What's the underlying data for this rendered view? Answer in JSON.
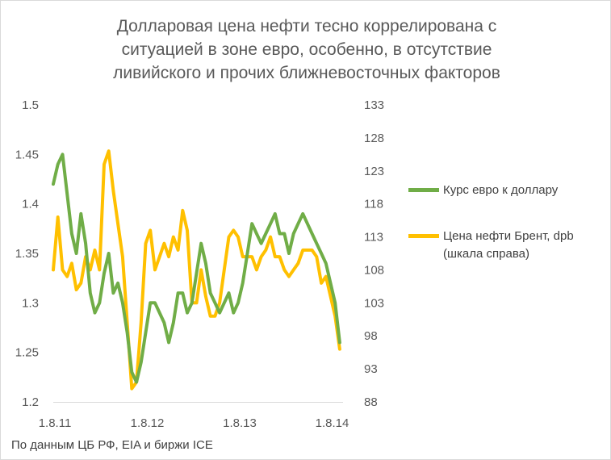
{
  "chart_data": {
    "type": "line",
    "title": [
      "Долларовая цена нефти тесно коррелирована с",
      "ситуацией в зоне евро, особенно, в отсутствие",
      "ливийского и прочих ближневосточных факторов"
    ],
    "x_tick_labels": [
      "1.8.11",
      "1.8.12",
      "1.8.13",
      "1.8.14"
    ],
    "ylim_left": [
      1.2,
      1.5
    ],
    "yticks_left": [
      "1.5",
      "1.45",
      "1.4",
      "1.35",
      "1.3",
      "1.25",
      "1.2"
    ],
    "ylim_right": [
      88,
      133
    ],
    "yticks_right": [
      "133",
      "128",
      "123",
      "118",
      "113",
      "108",
      "103",
      "98",
      "93",
      "88"
    ],
    "series": [
      {
        "name": "Курс евро к доллару",
        "axis": "left",
        "color": "#70ad47",
        "x": [
          0.0,
          0.05,
          0.1,
          0.15,
          0.2,
          0.25,
          0.3,
          0.35,
          0.4,
          0.45,
          0.5,
          0.55,
          0.6,
          0.65,
          0.7,
          0.75,
          0.8,
          0.85,
          0.9,
          0.95,
          1.0,
          1.05,
          1.1,
          1.15,
          1.2,
          1.25,
          1.3,
          1.35,
          1.4,
          1.45,
          1.5,
          1.55,
          1.6,
          1.65,
          1.7,
          1.75,
          1.8,
          1.85,
          1.9,
          1.95,
          2.0,
          2.05,
          2.1,
          2.15,
          2.2,
          2.25,
          2.3,
          2.35,
          2.4,
          2.45,
          2.5,
          2.55,
          2.6,
          2.65,
          2.7,
          2.75,
          2.8,
          2.85,
          2.9,
          2.95,
          3.0,
          3.05,
          3.1
        ],
        "values": [
          1.42,
          1.44,
          1.45,
          1.41,
          1.37,
          1.35,
          1.39,
          1.36,
          1.31,
          1.29,
          1.3,
          1.33,
          1.35,
          1.31,
          1.32,
          1.3,
          1.27,
          1.23,
          1.22,
          1.24,
          1.27,
          1.3,
          1.3,
          1.29,
          1.28,
          1.26,
          1.28,
          1.31,
          1.31,
          1.29,
          1.3,
          1.33,
          1.36,
          1.34,
          1.31,
          1.3,
          1.29,
          1.3,
          1.31,
          1.29,
          1.3,
          1.32,
          1.35,
          1.38,
          1.37,
          1.36,
          1.37,
          1.38,
          1.39,
          1.37,
          1.37,
          1.35,
          1.37,
          1.38,
          1.39,
          1.38,
          1.37,
          1.36,
          1.35,
          1.34,
          1.32,
          1.3,
          1.26
        ]
      },
      {
        "name": "Цена нефти  Брент, dpb (шкала справа)",
        "axis": "right",
        "color": "#ffc000",
        "x": [
          0.0,
          0.05,
          0.1,
          0.15,
          0.2,
          0.25,
          0.3,
          0.35,
          0.4,
          0.45,
          0.5,
          0.55,
          0.6,
          0.65,
          0.7,
          0.75,
          0.8,
          0.85,
          0.9,
          0.95,
          1.0,
          1.05,
          1.1,
          1.15,
          1.2,
          1.25,
          1.3,
          1.35,
          1.4,
          1.45,
          1.5,
          1.55,
          1.6,
          1.65,
          1.7,
          1.75,
          1.8,
          1.85,
          1.9,
          1.95,
          2.0,
          2.05,
          2.1,
          2.15,
          2.2,
          2.25,
          2.3,
          2.35,
          2.4,
          2.45,
          2.5,
          2.55,
          2.6,
          2.65,
          2.7,
          2.75,
          2.8,
          2.85,
          2.9,
          2.95,
          3.0,
          3.05,
          3.1
        ],
        "values": [
          108,
          116,
          108,
          107,
          109,
          105,
          106,
          110,
          108,
          111,
          108,
          124,
          126,
          120,
          115,
          110,
          100,
          90,
          91,
          100,
          112,
          114,
          108,
          110,
          112,
          110,
          113,
          111,
          117,
          114,
          103,
          103,
          108,
          104,
          101,
          101,
          103,
          108,
          113,
          114,
          113,
          110,
          110,
          110,
          108,
          110,
          111,
          113,
          110,
          110,
          108,
          107,
          108,
          109,
          111,
          111,
          111,
          110,
          106,
          107,
          104,
          101,
          96
        ]
      }
    ]
  },
  "legend": [
    {
      "label": "Курс евро к доллару",
      "color": "#70ad47"
    },
    {
      "label_lines": [
        "Цена нефти  Брент, dpb",
        "(шкала справа)"
      ],
      "color": "#ffc000"
    }
  ],
  "source": "По данным ЦБ РФ, EIA и биржи ICE"
}
